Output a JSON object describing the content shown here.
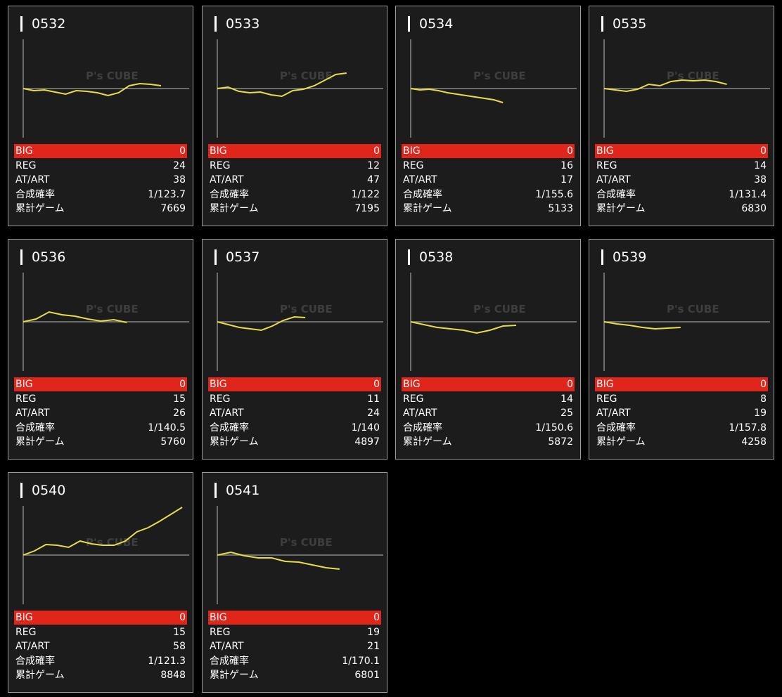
{
  "watermark": "P's CUBE",
  "labels": [
    "BIG",
    "REG",
    "AT/ART",
    "合成確率",
    "累計ゲーム"
  ],
  "graph_xlim": [
    0,
    9000
  ],
  "graph_ylim": [
    -70,
    70
  ],
  "cards": [
    {
      "id": "0532",
      "stats": [
        0,
        24,
        38,
        "1/123.7",
        7669
      ],
      "graph": [
        0,
        -3,
        -2,
        -5,
        -8,
        -3,
        -4,
        -6,
        -10,
        -6,
        4,
        7,
        6,
        4
      ]
    },
    {
      "id": "0533",
      "stats": [
        0,
        12,
        47,
        "1/122",
        7195
      ],
      "graph": [
        0,
        2,
        -4,
        -6,
        -5,
        -9,
        -11,
        -3,
        -1,
        4,
        12,
        20,
        22
      ]
    },
    {
      "id": "0534",
      "stats": [
        0,
        16,
        17,
        "1/155.6",
        5133
      ],
      "graph": [
        0,
        -2,
        -1,
        -3,
        -6,
        -8,
        -10,
        -12,
        -14,
        -16,
        -20
      ]
    },
    {
      "id": "0535",
      "stats": [
        0,
        14,
        38,
        "1/131.4",
        6830
      ],
      "graph": [
        0,
        -2,
        -4,
        -1,
        6,
        4,
        10,
        12,
        11,
        12,
        10,
        6
      ]
    },
    {
      "id": "0536",
      "stats": [
        0,
        15,
        26,
        "1/140.5",
        5760
      ],
      "graph": [
        0,
        4,
        14,
        10,
        8,
        4,
        1,
        3,
        -1
      ]
    },
    {
      "id": "0537",
      "stats": [
        0,
        11,
        24,
        "1/140",
        4897
      ],
      "graph": [
        0,
        -4,
        -8,
        -10,
        -12,
        -6,
        2,
        7,
        6
      ]
    },
    {
      "id": "0538",
      "stats": [
        0,
        14,
        25,
        "1/150.6",
        5872
      ],
      "graph": [
        0,
        -4,
        -8,
        -10,
        -12,
        -16,
        -12,
        -6,
        -5
      ]
    },
    {
      "id": "0539",
      "stats": [
        0,
        8,
        19,
        "1/157.8",
        4258
      ],
      "graph": [
        0,
        -3,
        -5,
        -8,
        -10,
        -9,
        -8
      ]
    },
    {
      "id": "0540",
      "stats": [
        0,
        15,
        58,
        "1/121.3",
        8848
      ],
      "graph": [
        0,
        6,
        15,
        14,
        11,
        20,
        16,
        14,
        14,
        20,
        33,
        39,
        48,
        58,
        68
      ]
    },
    {
      "id": "0541",
      "stats": [
        0,
        19,
        21,
        "1/170.1",
        6801
      ],
      "graph": [
        0,
        4,
        -1,
        -4,
        -4,
        -9,
        -10,
        -14,
        -18,
        -20
      ]
    }
  ]
}
